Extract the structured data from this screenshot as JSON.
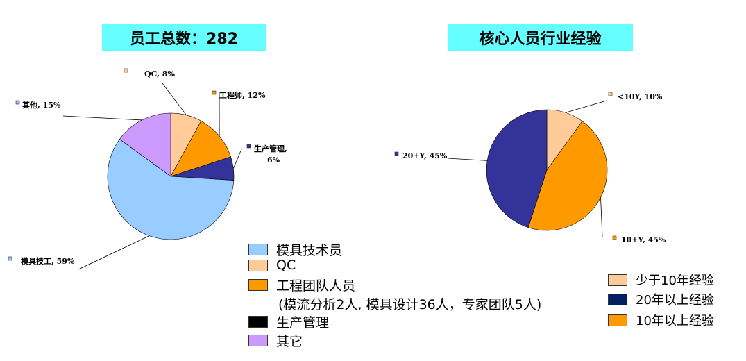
{
  "chart_data": [
    {
      "type": "pie",
      "title": "员工总数：282",
      "slices": [
        {
          "label": "QC",
          "value": 8,
          "data_label": "QC, 8%",
          "color": "#ffcc99"
        },
        {
          "label": "工程师",
          "value": 12,
          "data_label": "工程师, 12%",
          "color": "#ff9900"
        },
        {
          "label": "生产管理",
          "value": 6,
          "data_label_line1": "生产管理,",
          "data_label_line2": "6%",
          "color": "#333399"
        },
        {
          "label": "模具技工",
          "value": 59,
          "data_label": "模具技工, 59%",
          "color": "#99ccff"
        },
        {
          "label": "其他",
          "value": 15,
          "data_label": "其他, 15%",
          "color": "#cc99ff"
        }
      ],
      "legend": [
        {
          "label": "模具技术员",
          "color": "#99ccff"
        },
        {
          "label": "QC",
          "color": "#ffcc99"
        },
        {
          "label": "工程团队人员",
          "color": "#ff9900"
        },
        {
          "label": "生产管理",
          "color": "#000000"
        },
        {
          "label": "其它",
          "color": "#cc99ff"
        }
      ],
      "legend_note": "(模流分析2人, 模具设计36人，专家团队5人)",
      "legend_placement": "bottom-right"
    },
    {
      "type": "pie",
      "title": "核心人员行业经验",
      "slices": [
        {
          "label": "<10Y",
          "value": 10,
          "data_label": "<10Y, 10%",
          "color": "#ffcc99"
        },
        {
          "label": "10+Y",
          "value": 45,
          "data_label": "10+Y, 45%",
          "color": "#ff9900"
        },
        {
          "label": "20+Y",
          "value": 45,
          "data_label": "20+Y, 45%",
          "color": "#333399"
        }
      ],
      "legend": [
        {
          "label": "少于10年经验",
          "color": "#ffcc99"
        },
        {
          "label": "20年以上经验",
          "color": "#002060"
        },
        {
          "label": "10年以上经验",
          "color": "#ff9900"
        }
      ],
      "legend_placement": "bottom-right"
    }
  ]
}
